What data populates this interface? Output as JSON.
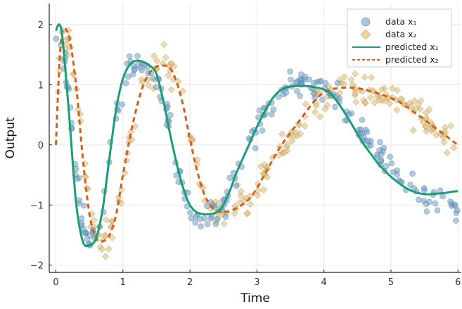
{
  "chart_data": {
    "type": "scatter",
    "xlabel": "Time",
    "ylabel": "Output",
    "xlim": [
      -0.1,
      6.05
    ],
    "ylim": [
      -2.12,
      2.35
    ],
    "xticks": [
      0,
      1,
      2,
      3,
      4,
      5,
      6
    ],
    "xtick_labels": [
      "0",
      "1",
      "2",
      "3",
      "4",
      "5",
      "6"
    ],
    "yticks": [
      -2,
      -1,
      0,
      1,
      2
    ],
    "ytick_labels": [
      "−2",
      "−1",
      "0",
      "1",
      "2"
    ],
    "grid": true,
    "legend_position": "top-right",
    "colors": {
      "data_x1": "#6b9fc9",
      "data_x2": "#e2c27a",
      "predicted_x1": "#1a9e77",
      "predicted_x2": "#d1601a"
    },
    "series": [
      {
        "name": "data x₁",
        "kind": "scatter",
        "marker": "circle",
        "curve": {
          "x": [
            0,
            0.05,
            0.1,
            0.2,
            0.3,
            0.4,
            0.5,
            0.6,
            0.7,
            0.8,
            0.9,
            1.0,
            1.1,
            1.2,
            1.3,
            1.4,
            1.5,
            1.6,
            1.7,
            1.8,
            1.9,
            2.0,
            2.1,
            2.2,
            2.3,
            2.4,
            2.5,
            2.6,
            2.7,
            2.8,
            2.9,
            3.0,
            3.1,
            3.2,
            3.3,
            3.4,
            3.5,
            3.6,
            3.7,
            3.8,
            3.9,
            4.0,
            4.1,
            4.2,
            4.3,
            4.4,
            4.5,
            4.6,
            4.7,
            4.8,
            4.9,
            5.0,
            5.1,
            5.2,
            5.3,
            5.4,
            5.5,
            5.6,
            5.7,
            5.8,
            5.9,
            6.0
          ],
          "y": [
            1.85,
            2.0,
            1.7,
            0.7,
            -0.55,
            -1.45,
            -1.6,
            -1.55,
            -1.1,
            -0.25,
            0.55,
            1.05,
            1.3,
            1.38,
            1.36,
            1.3,
            1.15,
            0.8,
            0.3,
            -0.25,
            -0.7,
            -1.0,
            -1.15,
            -1.18,
            -1.15,
            -1.1,
            -0.95,
            -0.7,
            -0.45,
            -0.2,
            0.05,
            0.3,
            0.5,
            0.7,
            0.85,
            0.93,
            0.97,
            0.98,
            0.98,
            0.97,
            0.95,
            0.92,
            0.85,
            0.75,
            0.6,
            0.45,
            0.3,
            0.1,
            -0.05,
            -0.2,
            -0.3,
            -0.45,
            -0.55,
            -0.6,
            -0.65,
            -0.75,
            -0.85,
            -0.9,
            -0.95,
            -0.97,
            -1.0,
            -1.0
          ]
        },
        "n_points": 250,
        "noise": 0.13,
        "seed": 11
      },
      {
        "name": "data x₂",
        "kind": "scatter",
        "marker": "diamond",
        "curve": {
          "x": [
            0,
            0.05,
            0.1,
            0.2,
            0.3,
            0.4,
            0.5,
            0.6,
            0.7,
            0.8,
            0.9,
            1.0,
            1.1,
            1.2,
            1.3,
            1.4,
            1.5,
            1.6,
            1.7,
            1.8,
            1.9,
            2.0,
            2.1,
            2.2,
            2.3,
            2.4,
            2.5,
            2.6,
            2.7,
            2.8,
            2.9,
            3.0,
            3.1,
            3.2,
            3.3,
            3.4,
            3.5,
            3.6,
            3.7,
            3.8,
            3.9,
            4.0,
            4.1,
            4.2,
            4.3,
            4.4,
            4.5,
            4.6,
            4.7,
            4.8,
            4.9,
            5.0,
            5.1,
            5.2,
            5.3,
            5.4,
            5.5,
            5.6,
            5.7,
            5.8,
            5.9,
            6.0
          ],
          "y": [
            0.05,
            1.4,
            1.9,
            1.75,
            1.05,
            0.0,
            -1.05,
            -1.55,
            -1.62,
            -1.5,
            -1.2,
            -0.6,
            0.0,
            0.55,
            0.95,
            1.2,
            1.3,
            1.33,
            1.3,
            1.1,
            0.7,
            0.15,
            -0.35,
            -0.75,
            -1.0,
            -1.1,
            -1.12,
            -1.08,
            -1.05,
            -1.0,
            -0.9,
            -0.75,
            -0.55,
            -0.35,
            -0.15,
            0.0,
            0.12,
            0.25,
            0.4,
            0.55,
            0.7,
            0.8,
            0.88,
            0.92,
            0.95,
            0.95,
            0.94,
            0.9,
            0.88,
            0.85,
            0.82,
            0.8,
            0.75,
            0.7,
            0.6,
            0.55,
            0.45,
            0.35,
            0.25,
            0.15,
            0.05,
            0.0
          ]
        },
        "n_points": 250,
        "noise": 0.13,
        "seed": 29
      },
      {
        "name": "predicted x₁",
        "kind": "line",
        "style": "solid",
        "x": [
          0,
          0.05,
          0.1,
          0.2,
          0.3,
          0.4,
          0.5,
          0.6,
          0.7,
          0.8,
          0.9,
          1.0,
          1.1,
          1.2,
          1.3,
          1.4,
          1.5,
          1.6,
          1.7,
          1.8,
          1.9,
          2.0,
          2.1,
          2.2,
          2.3,
          2.4,
          2.5,
          2.6,
          2.7,
          2.8,
          2.9,
          3.0,
          3.1,
          3.2,
          3.3,
          3.4,
          3.5,
          3.6,
          3.7,
          3.8,
          3.9,
          4.0,
          4.1,
          4.2,
          4.3,
          4.4,
          4.5,
          4.6,
          4.7,
          4.8,
          4.9,
          5.0,
          5.1,
          5.2,
          5.3,
          5.4,
          5.5,
          5.6,
          5.7,
          5.8,
          5.9,
          6.0
        ],
        "y": [
          1.9,
          2.0,
          1.75,
          0.45,
          -0.95,
          -1.6,
          -1.67,
          -1.55,
          -1.05,
          -0.2,
          0.6,
          1.1,
          1.33,
          1.4,
          1.38,
          1.32,
          1.18,
          0.75,
          0.2,
          -0.3,
          -0.72,
          -1.0,
          -1.12,
          -1.15,
          -1.15,
          -1.12,
          -1.0,
          -0.75,
          -0.45,
          -0.2,
          0.05,
          0.3,
          0.52,
          0.72,
          0.86,
          0.94,
          0.97,
          0.98,
          0.98,
          0.97,
          0.95,
          0.92,
          0.85,
          0.72,
          0.55,
          0.37,
          0.18,
          0.0,
          -0.15,
          -0.3,
          -0.42,
          -0.53,
          -0.62,
          -0.7,
          -0.76,
          -0.8,
          -0.82,
          -0.82,
          -0.81,
          -0.8,
          -0.78,
          -0.77
        ]
      },
      {
        "name": "predicted x₂",
        "kind": "line",
        "style": "dashed",
        "x": [
          0,
          0.05,
          0.1,
          0.2,
          0.3,
          0.4,
          0.5,
          0.6,
          0.7,
          0.8,
          0.9,
          1.0,
          1.1,
          1.2,
          1.3,
          1.4,
          1.5,
          1.6,
          1.7,
          1.8,
          1.9,
          2.0,
          2.1,
          2.2,
          2.3,
          2.4,
          2.5,
          2.6,
          2.7,
          2.8,
          2.9,
          3.0,
          3.1,
          3.2,
          3.3,
          3.4,
          3.5,
          3.6,
          3.7,
          3.8,
          3.9,
          4.0,
          4.1,
          4.2,
          4.3,
          4.4,
          4.5,
          4.6,
          4.7,
          4.8,
          4.9,
          5.0,
          5.1,
          5.2,
          5.3,
          5.4,
          5.5,
          5.6,
          5.7,
          5.8,
          5.9,
          6.0
        ],
        "y": [
          0.0,
          1.3,
          1.9,
          1.78,
          1.0,
          -0.2,
          -1.15,
          -1.55,
          -1.6,
          -1.5,
          -1.15,
          -0.5,
          0.1,
          0.6,
          0.98,
          1.2,
          1.3,
          1.32,
          1.28,
          1.05,
          0.65,
          0.1,
          -0.4,
          -0.78,
          -1.0,
          -1.1,
          -1.12,
          -1.1,
          -1.05,
          -0.98,
          -0.88,
          -0.72,
          -0.52,
          -0.32,
          -0.12,
          0.05,
          0.2,
          0.35,
          0.5,
          0.65,
          0.78,
          0.87,
          0.92,
          0.94,
          0.95,
          0.95,
          0.94,
          0.92,
          0.89,
          0.86,
          0.82,
          0.78,
          0.73,
          0.66,
          0.58,
          0.5,
          0.42,
          0.33,
          0.25,
          0.17,
          0.08,
          0.0
        ]
      }
    ]
  }
}
